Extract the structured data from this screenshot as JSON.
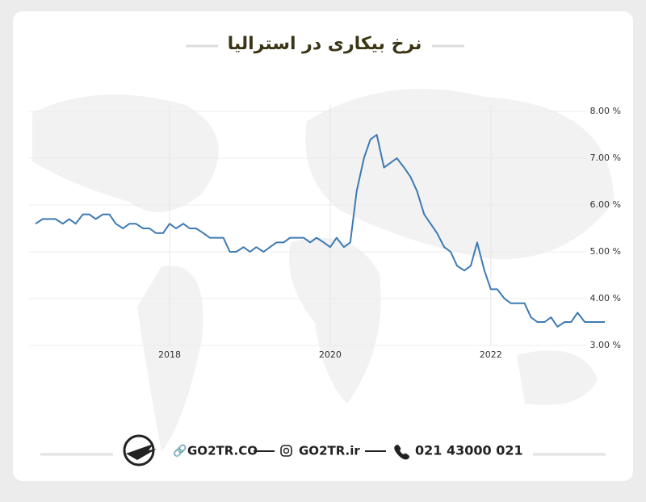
{
  "chart_data": {
    "type": "line",
    "title": "نرخ بیکاری در استرالیا",
    "x": [
      2016.33,
      2016.42,
      2016.5,
      2016.58,
      2016.67,
      2016.75,
      2016.83,
      2016.92,
      2017.0,
      2017.08,
      2017.17,
      2017.25,
      2017.33,
      2017.42,
      2017.5,
      2017.58,
      2017.67,
      2017.75,
      2017.83,
      2017.92,
      2018.0,
      2018.08,
      2018.17,
      2018.25,
      2018.33,
      2018.42,
      2018.5,
      2018.58,
      2018.67,
      2018.75,
      2018.83,
      2018.92,
      2019.0,
      2019.08,
      2019.17,
      2019.25,
      2019.33,
      2019.42,
      2019.5,
      2019.58,
      2019.67,
      2019.75,
      2019.83,
      2019.92,
      2020.0,
      2020.08,
      2020.17,
      2020.25,
      2020.33,
      2020.42,
      2020.5,
      2020.58,
      2020.67,
      2020.75,
      2020.83,
      2020.92,
      2021.0,
      2021.08,
      2021.17,
      2021.25,
      2021.33,
      2021.42,
      2021.5,
      2021.58,
      2021.67,
      2021.75,
      2021.83,
      2021.92,
      2022.0,
      2022.08,
      2022.17,
      2022.25,
      2022.33,
      2022.42,
      2022.5,
      2022.58,
      2022.67,
      2022.75,
      2022.83,
      2022.92,
      2023.0,
      2023.08,
      2023.17,
      2023.25,
      2023.33,
      2023.42
    ],
    "series": [
      {
        "color": "#3d7ab3",
        "values": [
          5.6,
          5.7,
          5.7,
          5.7,
          5.6,
          5.7,
          5.6,
          5.8,
          5.8,
          5.7,
          5.8,
          5.8,
          5.6,
          5.5,
          5.6,
          5.6,
          5.5,
          5.5,
          5.4,
          5.4,
          5.6,
          5.5,
          5.6,
          5.5,
          5.5,
          5.4,
          5.3,
          5.3,
          5.3,
          5.0,
          5.0,
          5.1,
          5.0,
          5.1,
          5.0,
          5.1,
          5.2,
          5.2,
          5.3,
          5.3,
          5.3,
          5.2,
          5.3,
          5.2,
          5.1,
          5.3,
          5.1,
          5.2,
          6.3,
          7.0,
          7.4,
          7.5,
          6.8,
          6.9,
          7.0,
          6.8,
          6.6,
          6.3,
          5.8,
          5.6,
          5.4,
          5.1,
          5.0,
          4.7,
          4.6,
          4.7,
          5.2,
          4.6,
          4.2,
          4.2,
          4.0,
          3.9,
          3.9,
          3.9,
          3.6,
          3.5,
          3.5,
          3.6,
          3.4,
          3.5,
          3.5,
          3.7,
          3.5,
          3.5,
          3.5,
          3.5
        ]
      }
    ],
    "xlim": [
      2016.25,
      2023.5
    ],
    "xticks": [
      2018,
      2020,
      2022
    ],
    "ylim": [
      3,
      8
    ],
    "yticks": [
      {
        "value": 8,
        "label": "8.00 %"
      },
      {
        "value": 7,
        "label": "7.00 %"
      },
      {
        "value": 6,
        "label": "6.00 %"
      },
      {
        "value": 5,
        "label": "5.00 %"
      },
      {
        "value": 4,
        "label": "4.00 %"
      },
      {
        "value": 3,
        "label": "3.00 %"
      }
    ],
    "grid": true
  },
  "footer": {
    "website": "GO2TR.CO",
    "instagram": "GO2TR.ir",
    "phone": "021 43000 021"
  }
}
